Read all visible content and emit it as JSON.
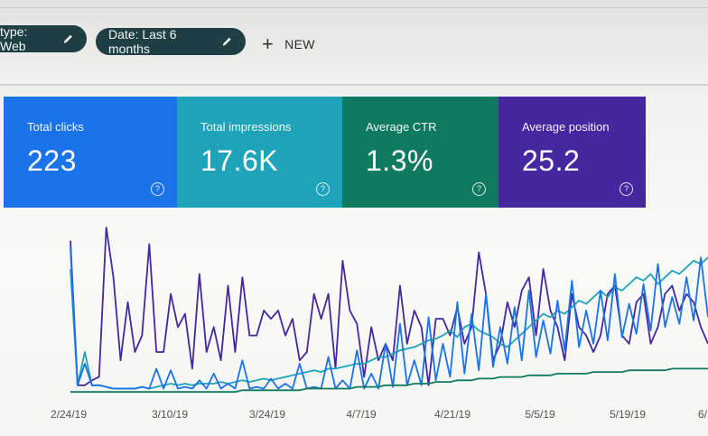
{
  "filters": {
    "type_chip": "type: Web",
    "date_chip": "Date: Last 6 months",
    "new_label": "NEW"
  },
  "metrics": {
    "clicks": {
      "label": "Total clicks",
      "value": "223",
      "color": "#1a73e8"
    },
    "impressions": {
      "label": "Total impressions",
      "value": "17.6K",
      "color": "#1fa3ba"
    },
    "ctr": {
      "label": "Average CTR",
      "value": "1.3%",
      "color": "#0f7a5f"
    },
    "position": {
      "label": "Average position",
      "value": "25.2",
      "color": "#4527a0"
    }
  },
  "chart_data": {
    "type": "line",
    "x_ticks": [
      "2/24/19",
      "3/10/19",
      "3/24/19",
      "4/7/19",
      "4/21/19",
      "5/5/19",
      "5/19/19",
      "6/"
    ],
    "series": [
      {
        "name": "Average position",
        "color": "#4527a0",
        "values": [
          92,
          5,
          5,
          8,
          10,
          100,
          70,
          20,
          55,
          25,
          35,
          90,
          25,
          25,
          60,
          40,
          48,
          15,
          72,
          25,
          40,
          20,
          65,
          25,
          70,
          35,
          35,
          50,
          45,
          50,
          35,
          45,
          20,
          25,
          60,
          45,
          60,
          15,
          80,
          50,
          42,
          10,
          40,
          20,
          30,
          20,
          65,
          30,
          50,
          40,
          5,
          45,
          45,
          35,
          52,
          30,
          40,
          85,
          60,
          20,
          30,
          55,
          40,
          62,
          70,
          35,
          75,
          50,
          40,
          20,
          60,
          40,
          35,
          25,
          35,
          60,
          65,
          35,
          30,
          55,
          60,
          30,
          40,
          60,
          65,
          50,
          60,
          55,
          40,
          30
        ]
      },
      {
        "name": "Total impressions",
        "color": "#1fa3ba",
        "values": [
          75,
          5,
          25,
          5,
          5,
          4,
          3,
          3,
          3,
          3,
          4,
          3,
          4,
          5,
          6,
          5,
          6,
          5,
          6,
          6,
          6,
          7,
          6,
          7,
          8,
          7,
          8,
          9,
          8,
          9,
          10,
          11,
          12,
          13,
          14,
          13,
          15,
          15,
          16,
          17,
          18,
          18,
          20,
          22,
          22,
          24,
          26,
          27,
          28,
          30,
          32,
          33,
          35,
          38,
          34,
          40,
          42,
          38,
          36,
          34,
          30,
          28,
          32,
          36,
          40,
          44,
          48,
          46,
          50,
          48,
          52,
          56,
          54,
          58,
          62,
          58,
          64,
          62,
          66,
          70,
          68,
          72,
          66,
          70,
          74,
          72,
          76,
          80,
          78,
          82
        ]
      },
      {
        "name": "Total clicks",
        "color": "#1a73e8",
        "values": [
          88,
          5,
          18,
          5,
          5,
          4,
          3,
          3,
          3,
          3,
          4,
          3,
          15,
          3,
          14,
          3,
          4,
          3,
          8,
          3,
          12,
          3,
          6,
          3,
          20,
          3,
          4,
          3,
          9,
          3,
          6,
          3,
          18,
          3,
          4,
          3,
          22,
          3,
          8,
          3,
          26,
          3,
          12,
          3,
          30,
          4,
          42,
          5,
          20,
          5,
          46,
          8,
          30,
          10,
          55,
          12,
          48,
          14,
          60,
          16,
          40,
          18,
          52,
          20,
          62,
          22,
          44,
          24,
          56,
          26,
          68,
          28,
          50,
          30,
          62,
          32,
          72,
          34,
          54,
          36,
          66,
          38,
          78,
          40,
          58,
          42,
          70,
          44,
          82,
          46
        ]
      },
      {
        "name": "Average CTR",
        "color": "#0f7a5f",
        "values": [
          1,
          1,
          1,
          1,
          1,
          1,
          1,
          1,
          1,
          1,
          1,
          1,
          1,
          1,
          1,
          1,
          1,
          1,
          1,
          1,
          1,
          1,
          1,
          1,
          2,
          2,
          2,
          2,
          2,
          2,
          2,
          2,
          2,
          3,
          3,
          3,
          3,
          3,
          3,
          3,
          4,
          4,
          4,
          4,
          5,
          5,
          5,
          5,
          6,
          6,
          6,
          7,
          7,
          7,
          8,
          8,
          8,
          9,
          9,
          9,
          10,
          10,
          10,
          10,
          11,
          11,
          11,
          11,
          12,
          12,
          12,
          12,
          12,
          13,
          13,
          13,
          13,
          13,
          14,
          14,
          14,
          14,
          14,
          14,
          15,
          15,
          15,
          15,
          15,
          15
        ]
      }
    ],
    "ylim": [
      0,
      100
    ],
    "grid": false
  }
}
